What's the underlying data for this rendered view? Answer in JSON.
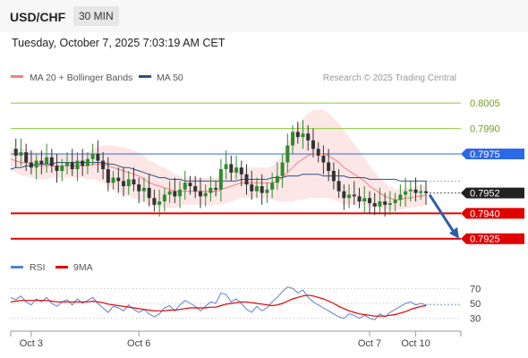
{
  "header": {
    "pair": "USD/CHF",
    "timeframe": "30 MIN"
  },
  "timestamp": "Tuesday, October 7, 2025 7:03:19 AM CET",
  "legend": {
    "ma20": {
      "label": "MA 20 + Bollinger Bands",
      "color": "#f08080"
    },
    "ma50": {
      "label": "MA 50",
      "color": "#2d4f87"
    }
  },
  "copyright": "Research © 2025 Trading Central",
  "rsi_legend": {
    "rsi": {
      "label": "RSI",
      "color": "#5b7fd6"
    },
    "ma": {
      "label": "9MA",
      "color": "#e00000"
    }
  },
  "chart_data": {
    "type": "candlestick",
    "ylim": [
      0.7918,
      0.8013
    ],
    "current_price": "0.7952",
    "levels": [
      {
        "label": "0.8005",
        "value": 0.8005,
        "color": "#8dc63f",
        "style": "line"
      },
      {
        "label": "0.7990",
        "value": 0.799,
        "color": "#8dc63f",
        "style": "line"
      },
      {
        "label": "0.7975",
        "value": 0.7975,
        "color": "#2d68e6",
        "style": "line"
      },
      {
        "label": "0.7940",
        "value": 0.794,
        "color": "#e00000",
        "style": "line"
      },
      {
        "label": "0.7925",
        "value": 0.7925,
        "color": "#e00000",
        "style": "line"
      }
    ],
    "arrow": {
      "from": 0.7952,
      "to": 0.7925,
      "direction": "down",
      "color": "#2d5fa8"
    },
    "price_series": [
      0.7978,
      0.7974,
      0.7976,
      0.797,
      0.7967,
      0.7971,
      0.7969,
      0.7973,
      0.7968,
      0.7965,
      0.7968,
      0.797,
      0.7966,
      0.7971,
      0.7968,
      0.7972,
      0.7975,
      0.7971,
      0.7966,
      0.7958,
      0.7961,
      0.7959,
      0.7956,
      0.796,
      0.7957,
      0.7953,
      0.7955,
      0.7949,
      0.7945,
      0.7947,
      0.7951,
      0.7953,
      0.795,
      0.7954,
      0.7958,
      0.7956,
      0.7953,
      0.795,
      0.7952,
      0.7955,
      0.7954,
      0.7966,
      0.7969,
      0.7964,
      0.7967,
      0.7963,
      0.7957,
      0.7953,
      0.7956,
      0.7952,
      0.7954,
      0.7958,
      0.7962,
      0.797,
      0.798,
      0.7988,
      0.7985,
      0.7987,
      0.7983,
      0.7978,
      0.7974,
      0.797,
      0.7965,
      0.7959,
      0.7953,
      0.7949,
      0.7951,
      0.795,
      0.7947,
      0.7949,
      0.7946,
      0.7944,
      0.7947,
      0.7945,
      0.7946,
      0.7948,
      0.7951,
      0.7953,
      0.7954,
      0.7952,
      0.7953,
      0.7952
    ],
    "ma20": [
      0.7972,
      0.7971,
      0.797,
      0.797,
      0.7969,
      0.7968,
      0.7968,
      0.7968,
      0.7968,
      0.7968,
      0.7968,
      0.7968,
      0.7968,
      0.7968,
      0.7968,
      0.7968,
      0.7969,
      0.7969,
      0.7969,
      0.7968,
      0.7967,
      0.7966,
      0.7965,
      0.7964,
      0.7963,
      0.7962,
      0.796,
      0.7958,
      0.7957,
      0.7956,
      0.7955,
      0.7954,
      0.7953,
      0.7953,
      0.7953,
      0.7953,
      0.7953,
      0.7953,
      0.7953,
      0.7953,
      0.7953,
      0.7954,
      0.7955,
      0.7956,
      0.7957,
      0.7958,
      0.7958,
      0.7958,
      0.7958,
      0.7958,
      0.7958,
      0.7958,
      0.7959,
      0.7961,
      0.7964,
      0.7967,
      0.797,
      0.7972,
      0.7974,
      0.7975,
      0.7975,
      0.7975,
      0.7974,
      0.7972,
      0.797,
      0.7967,
      0.7965,
      0.7963,
      0.7961,
      0.7959,
      0.7956,
      0.7954,
      0.7952,
      0.795,
      0.7949,
      0.7948,
      0.7948,
      0.7949,
      0.7949,
      0.795,
      0.795,
      0.7951
    ],
    "ma50": [
      0.7966,
      0.7967,
      0.7967,
      0.7968,
      0.7968,
      0.7969,
      0.7969,
      0.7969,
      0.7969,
      0.797,
      0.797,
      0.797,
      0.797,
      0.797,
      0.797,
      0.797,
      0.797,
      0.797,
      0.797,
      0.7969,
      0.7969,
      0.7968,
      0.7967,
      0.7967,
      0.7966,
      0.7965,
      0.7964,
      0.7963,
      0.7962,
      0.7961,
      0.7961,
      0.796,
      0.796,
      0.796,
      0.7959,
      0.7959,
      0.7959,
      0.7959,
      0.7959,
      0.7959,
      0.7959,
      0.7959,
      0.7959,
      0.7959,
      0.7959,
      0.796,
      0.796,
      0.796,
      0.796,
      0.796,
      0.796,
      0.7961,
      0.7961,
      0.7961,
      0.7962,
      0.7962,
      0.7962,
      0.7963,
      0.7963,
      0.7963,
      0.7963,
      0.7962,
      0.7962,
      0.7962,
      0.7962,
      0.7962,
      0.7961,
      0.7961,
      0.7961,
      0.7961,
      0.796,
      0.796,
      0.796,
      0.796,
      0.796,
      0.796,
      0.7959,
      0.7959,
      0.7959,
      0.7959,
      0.7959,
      0.7959
    ],
    "band_width": [
      0.0007,
      0.0007,
      0.0008,
      0.0008,
      0.0008,
      0.0008,
      0.0008,
      0.0008,
      0.0007,
      0.0007,
      0.0007,
      0.0007,
      0.0007,
      0.0007,
      0.0007,
      0.0008,
      0.0009,
      0.001,
      0.0011,
      0.0012,
      0.0013,
      0.0013,
      0.0014,
      0.0014,
      0.0014,
      0.0014,
      0.0014,
      0.0013,
      0.0013,
      0.0012,
      0.0012,
      0.0011,
      0.001,
      0.0009,
      0.0008,
      0.0008,
      0.0008,
      0.0008,
      0.0008,
      0.0008,
      0.0008,
      0.0009,
      0.0009,
      0.0009,
      0.0009,
      0.0009,
      0.0009,
      0.0009,
      0.0009,
      0.0009,
      0.0009,
      0.001,
      0.0012,
      0.0014,
      0.0017,
      0.002,
      0.0022,
      0.0024,
      0.0025,
      0.0026,
      0.0026,
      0.0026,
      0.0025,
      0.0024,
      0.0023,
      0.0022,
      0.002,
      0.0018,
      0.0016,
      0.0014,
      0.0012,
      0.001,
      0.0009,
      0.0008,
      0.0007,
      0.0006,
      0.0006,
      0.0006,
      0.0006,
      0.0006,
      0.0006,
      0.0006
    ],
    "rsi": {
      "ylim": [
        20,
        80
      ],
      "ticks": [
        "70",
        "50",
        "30"
      ],
      "tick_values": [
        70,
        50,
        30
      ],
      "rsi_values": [
        58,
        55,
        60,
        52,
        48,
        56,
        52,
        58,
        50,
        46,
        52,
        55,
        48,
        56,
        50,
        54,
        58,
        50,
        44,
        38,
        46,
        44,
        40,
        48,
        42,
        38,
        42,
        36,
        32,
        36,
        44,
        47,
        40,
        48,
        54,
        50,
        46,
        40,
        46,
        52,
        50,
        64,
        62,
        52,
        56,
        50,
        42,
        38,
        46,
        40,
        44,
        52,
        58,
        66,
        72,
        70,
        64,
        68,
        58,
        52,
        48,
        44,
        40,
        36,
        32,
        30,
        36,
        34,
        30,
        34,
        30,
        28,
        36,
        32,
        38,
        42,
        46,
        50,
        52,
        48,
        50,
        48
      ],
      "ma_values": [
        52,
        53,
        54,
        54,
        54,
        54,
        54,
        54,
        53,
        52,
        52,
        52,
        52,
        52,
        52,
        52,
        53,
        52,
        51,
        49,
        48,
        47,
        46,
        45,
        44,
        43,
        42,
        41,
        40,
        40,
        40,
        41,
        41,
        42,
        43,
        44,
        44,
        44,
        44,
        45,
        45,
        47,
        49,
        50,
        51,
        52,
        52,
        51,
        50,
        49,
        48,
        47,
        48,
        50,
        53,
        56,
        58,
        60,
        61,
        60,
        58,
        56,
        53,
        50,
        46,
        43,
        40,
        38,
        36,
        35,
        34,
        33,
        33,
        33,
        34,
        35,
        37,
        39,
        42,
        44,
        46,
        47
      ]
    },
    "x_ticks": [
      {
        "label": "Oct 3",
        "index": 4
      },
      {
        "label": "Oct 6",
        "index": 25
      },
      {
        "label": "Oct 7",
        "index": 70
      },
      {
        "label": "Oct 10",
        "index": 79
      }
    ]
  }
}
